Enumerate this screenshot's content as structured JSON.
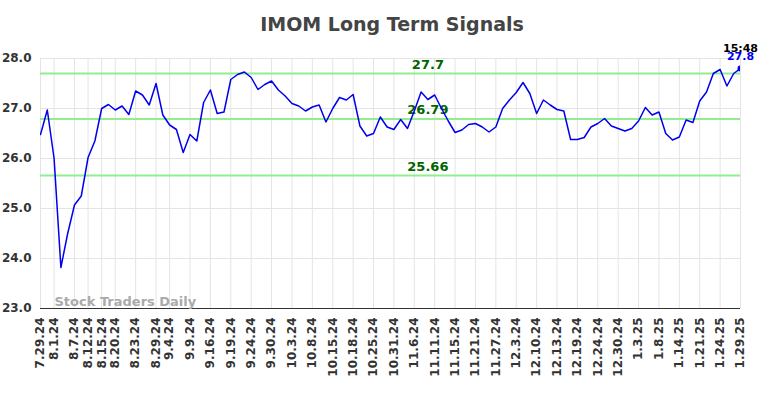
{
  "chart_data": {
    "type": "line",
    "title": "IMOM Long Term Signals",
    "categories": [
      "7.29.24",
      null,
      "8.1.24",
      null,
      null,
      "8.7.24",
      null,
      "8.12.24",
      null,
      "8.15.24",
      null,
      "8.20.24",
      null,
      null,
      "8.23.24",
      null,
      null,
      "8.29.24",
      null,
      "9.4.24",
      null,
      null,
      "9.9.24",
      null,
      null,
      "9.16.24",
      null,
      null,
      "9.19.24",
      null,
      null,
      "9.24.24",
      null,
      null,
      "9.30.24",
      null,
      null,
      "10.3.24",
      null,
      null,
      "10.8.24",
      null,
      null,
      "10.15.24",
      null,
      null,
      "10.18.24",
      null,
      null,
      "10.25.24",
      null,
      null,
      "10.31.24",
      null,
      null,
      "11.6.24",
      null,
      null,
      "11.11.24",
      null,
      null,
      "11.15.24",
      null,
      null,
      "11.21.24",
      null,
      null,
      "11.27.24",
      null,
      null,
      "12.3.24",
      null,
      null,
      "12.10.24",
      null,
      null,
      "12.13.24",
      null,
      null,
      "12.19.24",
      null,
      null,
      "12.24.24",
      null,
      null,
      "12.30.24",
      null,
      null,
      "1.3.25",
      null,
      null,
      "1.8.25",
      null,
      null,
      "1.14.25",
      null,
      null,
      "1.21.25",
      null,
      null,
      "1.24.25",
      null,
      null,
      "1.29.25"
    ],
    "values": [
      26.48,
      26.97,
      26.0,
      23.82,
      24.5,
      25.07,
      25.25,
      26.02,
      26.35,
      27.0,
      27.08,
      26.97,
      27.05,
      26.88,
      27.35,
      27.27,
      27.07,
      27.5,
      26.87,
      26.67,
      26.58,
      26.12,
      26.48,
      26.35,
      27.12,
      27.37,
      26.9,
      26.93,
      27.58,
      27.68,
      27.73,
      27.62,
      27.38,
      27.48,
      27.55,
      27.37,
      27.25,
      27.1,
      27.05,
      26.95,
      27.03,
      27.07,
      26.73,
      27.0,
      27.22,
      27.17,
      27.28,
      26.65,
      26.45,
      26.5,
      26.83,
      26.63,
      26.58,
      26.78,
      26.6,
      26.95,
      27.33,
      27.18,
      27.27,
      27.0,
      26.75,
      26.52,
      26.57,
      26.68,
      26.7,
      26.63,
      26.53,
      26.63,
      27.0,
      27.17,
      27.32,
      27.52,
      27.3,
      26.9,
      27.17,
      27.07,
      26.98,
      26.95,
      26.38,
      26.38,
      26.42,
      26.63,
      26.7,
      26.8,
      26.65,
      26.6,
      26.55,
      26.6,
      26.75,
      27.02,
      26.87,
      26.93,
      26.5,
      26.37,
      26.43,
      26.77,
      26.72,
      27.15,
      27.33,
      27.7,
      27.78,
      27.45,
      27.7,
      27.8
    ],
    "color": "#0000ee",
    "ylim": [
      23,
      28
    ],
    "yticks": [
      23,
      24,
      25,
      26,
      27,
      28
    ],
    "grid": true,
    "signal_levels": [
      27.7,
      26.79,
      25.66
    ],
    "level_color": "#90ee90",
    "level_label_color": "#006400",
    "time_label": "15:48",
    "watermark": "Stock Traders Daily"
  }
}
